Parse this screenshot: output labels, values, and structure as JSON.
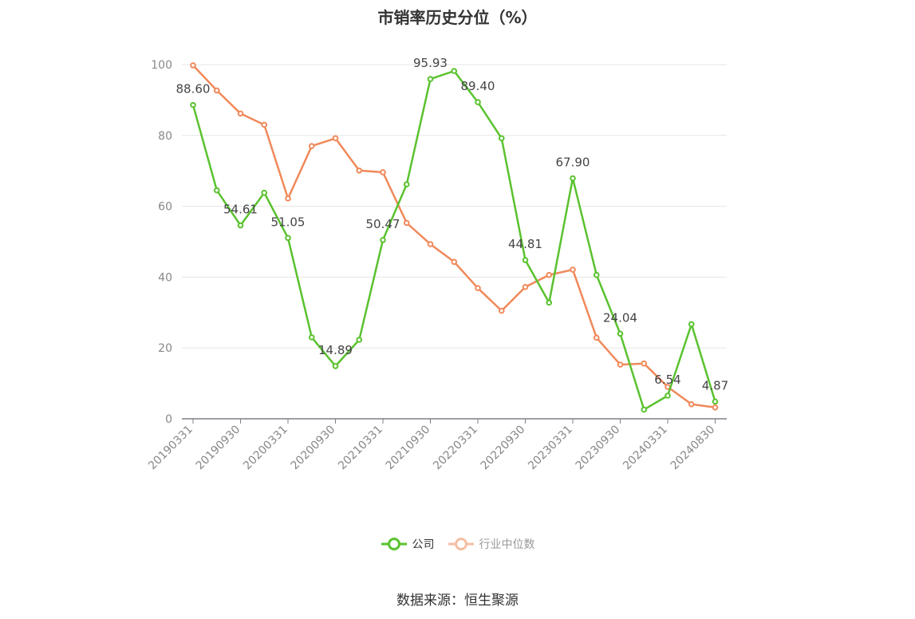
{
  "page": {
    "source_note": "数据来源：恒生聚源"
  },
  "chart_data": {
    "type": "line",
    "title": "市销率历史分位（%）",
    "xlabel": "",
    "ylabel": "",
    "ylim": [
      0,
      100
    ],
    "yticks": [
      0,
      20,
      40,
      60,
      80,
      100
    ],
    "grid": true,
    "legend_position": "bottom-center",
    "x": [
      "20190331",
      "20190630",
      "20190930",
      "20191231",
      "20200331",
      "20200630",
      "20200930",
      "20201231",
      "20210331",
      "20210630",
      "20210930",
      "20211231",
      "20220331",
      "20220630",
      "20220930",
      "20221231",
      "20230331",
      "20230630",
      "20230930",
      "20231231",
      "20240331",
      "20240630",
      "20240830"
    ],
    "tick_labels": [
      "20190331",
      "20190930",
      "20200331",
      "20200930",
      "20210331",
      "20210930",
      "20220331",
      "20220930",
      "20230331",
      "20230930",
      "20240331",
      "20240830"
    ],
    "series": [
      {
        "name": "公司",
        "color": "#5ac22f",
        "values": [
          88.6,
          64.5,
          54.61,
          63.8,
          51.05,
          23.0,
          14.89,
          22.3,
          50.47,
          66.2,
          95.93,
          98.2,
          89.4,
          79.2,
          44.81,
          32.8,
          67.9,
          40.6,
          24.04,
          2.6,
          6.54,
          26.7,
          4.87
        ],
        "labeled": [
          "88.60",
          null,
          "54.61",
          null,
          "51.05",
          null,
          "14.89",
          null,
          "50.47",
          null,
          "95.93",
          null,
          "89.40",
          null,
          "44.81",
          null,
          "67.90",
          null,
          "24.04",
          null,
          "6.54",
          null,
          "4.87"
        ]
      },
      {
        "name": "行业中位数",
        "color": "#f0895a",
        "values": [
          99.8,
          92.7,
          86.2,
          83.0,
          62.2,
          77.0,
          79.2,
          70.1,
          69.6,
          55.3,
          49.3,
          44.3,
          36.9,
          30.5,
          37.2,
          40.6,
          42.1,
          22.9,
          15.3,
          15.6,
          9.0,
          4.1,
          3.2
        ]
      }
    ]
  }
}
